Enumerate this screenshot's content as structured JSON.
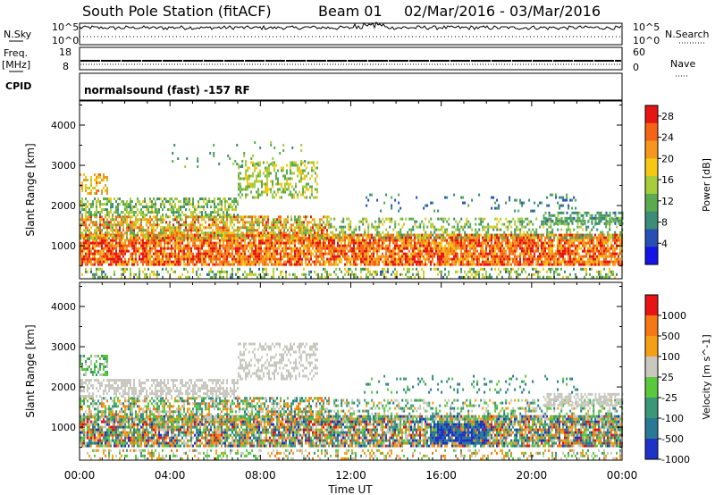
{
  "header": {
    "station": "South Pole Station (fitACF)",
    "beam": "Beam 01",
    "date_range": "02/Mar/2016 - 03/Mar/2016"
  },
  "param_panels": {
    "nsky_label": "N.Sky",
    "nsearch_label": "N.Search",
    "freq_label_line1": "Freq.",
    "freq_label_line2": "[MHz]",
    "nave_label": "Nave",
    "cpid_label": "CPID",
    "left_ticks_top": [
      "10^5",
      "10^0"
    ],
    "right_ticks_top": [
      "10^5",
      "10^0"
    ],
    "left_ticks_freq": [
      "18",
      "8"
    ],
    "right_ticks_nave": [
      "60",
      "0"
    ],
    "cpid_text": "normalsound (fast) -157 RF"
  },
  "chart_data": [
    {
      "type": "heatmap",
      "title": "",
      "xlabel": "Time UT",
      "ylabel": "Slant Range [km]",
      "x_ticks": [
        "00:00",
        "04:00",
        "08:00",
        "12:00",
        "16:00",
        "20:00",
        "00:00"
      ],
      "xlim_hours": [
        0,
        24
      ],
      "ylim": [
        180,
        4600
      ],
      "y_ticks": [
        1000,
        2000,
        3000,
        4000
      ],
      "colorbar": {
        "label": "Power [dB]",
        "ticks": [
          4,
          8,
          12,
          16,
          20,
          24,
          28
        ],
        "range": [
          0,
          30
        ],
        "colors": [
          "#1414e6",
          "#2850b4",
          "#3c8c78",
          "#5aaa50",
          "#a5cd3c",
          "#f5c814",
          "#f5961e",
          "#f56414",
          "#e61414"
        ]
      },
      "bands": [
        {
          "t0": 0,
          "t1": 24,
          "r0": 250,
          "r1": 450,
          "density": 0.35,
          "v0": 6,
          "v1": 20
        },
        {
          "t0": 0,
          "t1": 24,
          "r0": 520,
          "r1": 1300,
          "density": 0.85,
          "v0": 18,
          "v1": 30
        },
        {
          "t0": 0,
          "t1": 11,
          "r0": 1200,
          "r1": 1750,
          "density": 0.7,
          "v0": 10,
          "v1": 28
        },
        {
          "t0": 0,
          "t1": 7,
          "r0": 1750,
          "r1": 2200,
          "density": 0.55,
          "v0": 8,
          "v1": 18
        },
        {
          "t0": 7,
          "t1": 10.5,
          "r0": 2200,
          "r1": 3100,
          "density": 0.45,
          "v0": 10,
          "v1": 20
        },
        {
          "t0": 0,
          "t1": 1.2,
          "r0": 2300,
          "r1": 2800,
          "density": 0.5,
          "v0": 16,
          "v1": 24
        },
        {
          "t0": 11,
          "t1": 24,
          "r0": 1200,
          "r1": 1700,
          "density": 0.35,
          "v0": 8,
          "v1": 18
        },
        {
          "t0": 20.5,
          "t1": 24,
          "r0": 1550,
          "r1": 1850,
          "density": 0.6,
          "v0": 6,
          "v1": 14
        },
        {
          "t0": 12.5,
          "t1": 22,
          "r0": 1900,
          "r1": 2300,
          "density": 0.12,
          "v0": 4,
          "v1": 12
        },
        {
          "t0": 4,
          "t1": 10,
          "r0": 3000,
          "r1": 3600,
          "density": 0.06,
          "v0": 8,
          "v1": 14
        }
      ]
    },
    {
      "type": "heatmap",
      "title": "",
      "xlabel": "Time UT",
      "ylabel": "Slant Range [km]",
      "x_ticks": [
        "00:00",
        "04:00",
        "08:00",
        "12:00",
        "16:00",
        "20:00",
        "00:00"
      ],
      "xlim_hours": [
        0,
        24
      ],
      "ylim": [
        180,
        4600
      ],
      "y_ticks": [
        1000,
        2000,
        3000,
        4000
      ],
      "colorbar": {
        "label": "Velocity [m s^-1]",
        "ticks": [
          "1000",
          "500",
          "100",
          "25",
          "-25",
          "-100",
          "-500",
          "-1000"
        ],
        "colors": [
          "#1e32c8",
          "#287896",
          "#3c9678",
          "#5ac83c",
          "#c8c8c0",
          "#f5a014",
          "#f57814",
          "#e61414"
        ]
      },
      "bands": [
        {
          "t0": 0,
          "t1": 24,
          "r0": 250,
          "r1": 450,
          "density": 0.3,
          "v0": 2,
          "v1": 6
        },
        {
          "t0": 0,
          "t1": 24,
          "r0": 520,
          "r1": 1300,
          "density": 0.85,
          "v0": 0,
          "v1": 7
        },
        {
          "t0": 0,
          "t1": 11,
          "r0": 1200,
          "r1": 1750,
          "density": 0.6,
          "v0": 1,
          "v1": 6
        },
        {
          "t0": 0,
          "t1": 7,
          "r0": 1750,
          "r1": 2200,
          "density": 0.55,
          "v0": 4,
          "v1": 4
        },
        {
          "t0": 7,
          "t1": 10.5,
          "r0": 2200,
          "r1": 3100,
          "density": 0.45,
          "v0": 4,
          "v1": 4
        },
        {
          "t0": 0,
          "t1": 1.2,
          "r0": 2300,
          "r1": 2800,
          "density": 0.5,
          "v0": 2,
          "v1": 4
        },
        {
          "t0": 11,
          "t1": 24,
          "r0": 1200,
          "r1": 1700,
          "density": 0.35,
          "v0": 1,
          "v1": 5
        },
        {
          "t0": 20.5,
          "t1": 24,
          "r0": 1550,
          "r1": 1850,
          "density": 0.6,
          "v0": 4,
          "v1": 4
        },
        {
          "t0": 15.5,
          "t1": 18,
          "r0": 600,
          "r1": 1100,
          "density": 0.8,
          "v0": 0,
          "v1": 1
        },
        {
          "t0": 12.5,
          "t1": 22,
          "r0": 1900,
          "r1": 2300,
          "density": 0.12,
          "v0": 1,
          "v1": 3
        }
      ]
    }
  ]
}
